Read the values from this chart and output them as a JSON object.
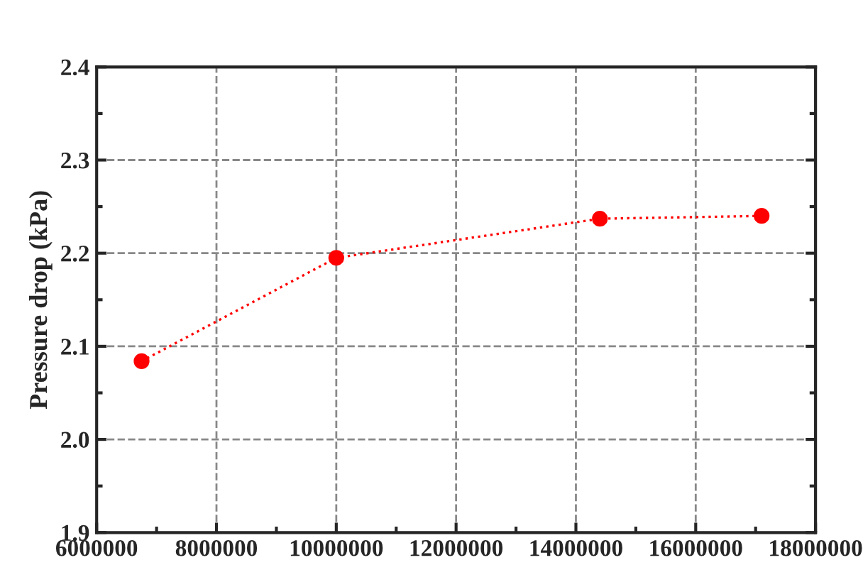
{
  "chart_data": {
    "type": "line",
    "ylabel": "Pressure drop (kPa)",
    "x": [
      6750000,
      10000000,
      14400000,
      17100000
    ],
    "series": [
      {
        "color": "#ff0000",
        "values": [
          2.084,
          2.195,
          2.237,
          2.24
        ]
      }
    ],
    "xlim": [
      6000000,
      18000000
    ],
    "xticks": [
      6000000,
      8000000,
      10000000,
      12000000,
      14000000,
      16000000,
      18000000
    ],
    "ylim": [
      1.9,
      2.4
    ],
    "yticks": [
      {
        "value": 1.9,
        "label": "1.9"
      },
      {
        "value": 2.0,
        "label": "2.0"
      },
      {
        "value": 2.1,
        "label": "2.1"
      },
      {
        "value": 2.2,
        "label": "2.2"
      },
      {
        "value": 2.3,
        "label": "2.3"
      },
      {
        "value": 2.4,
        "label": "2.4"
      }
    ],
    "grid": true,
    "marker": "circle",
    "line_style": "dotted"
  }
}
